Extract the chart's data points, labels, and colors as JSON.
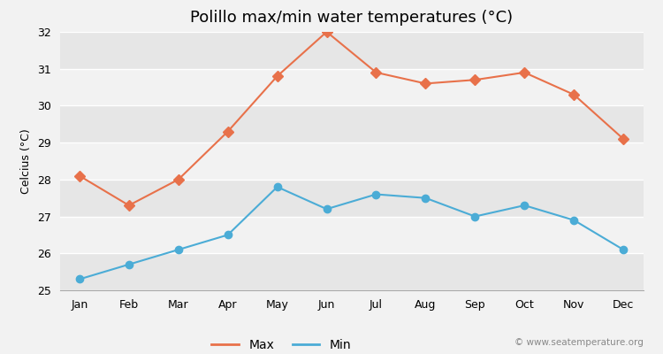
{
  "title": "Polillo max/min water temperatures (°C)",
  "ylabel": "Celcius (°C)",
  "months": [
    "Jan",
    "Feb",
    "Mar",
    "Apr",
    "May",
    "Jun",
    "Jul",
    "Aug",
    "Sep",
    "Oct",
    "Nov",
    "Dec"
  ],
  "max_values": [
    28.1,
    27.3,
    28.0,
    29.3,
    30.8,
    32.0,
    30.9,
    30.6,
    30.7,
    30.9,
    30.3,
    29.1
  ],
  "min_values": [
    25.3,
    25.7,
    26.1,
    26.5,
    27.8,
    27.2,
    27.6,
    27.5,
    27.0,
    27.3,
    26.9,
    26.1
  ],
  "max_color": "#E8714A",
  "min_color": "#4BACD6",
  "figure_bg_color": "#f2f2f2",
  "plot_bg_color": "#f2f2f2",
  "band_color_dark": "#e6e6e6",
  "band_color_light": "#f2f2f2",
  "grid_color": "#ffffff",
  "ylim": [
    25,
    32
  ],
  "yticks": [
    25,
    26,
    27,
    28,
    29,
    30,
    31,
    32
  ],
  "legend_labels": [
    "Max",
    "Min"
  ],
  "watermark": "© www.seatemperature.org",
  "title_fontsize": 13,
  "axis_label_fontsize": 9,
  "tick_fontsize": 9,
  "marker_style_max": "D",
  "marker_style_min": "o",
  "marker_size_max": 6,
  "marker_size_min": 6,
  "linewidth": 1.5
}
